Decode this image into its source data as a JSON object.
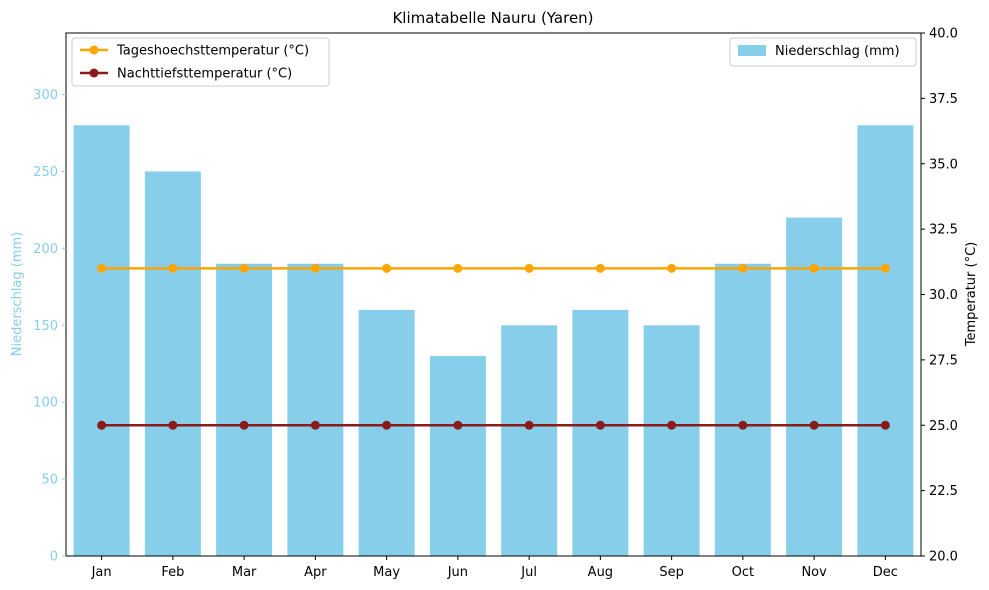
{
  "chart_data": {
    "type": "bar",
    "title": "Klimatabelle Nauru (Yaren)",
    "categories": [
      "Jan",
      "Feb",
      "Mar",
      "Apr",
      "May",
      "Jun",
      "Jul",
      "Aug",
      "Sep",
      "Oct",
      "Nov",
      "Dec"
    ],
    "precipitation": {
      "name": "Niederschlag (mm)",
      "values": [
        280,
        250,
        190,
        190,
        160,
        130,
        150,
        160,
        150,
        190,
        220,
        280
      ],
      "color": "#87CEEB",
      "ylabel": "Niederschlag (mm)",
      "ylim": [
        0,
        340
      ],
      "ticks": [
        0,
        50,
        100,
        150,
        200,
        250,
        300
      ],
      "tick_labels": [
        "0",
        "50",
        "100",
        "150",
        "200",
        "250",
        "300"
      ]
    },
    "temperature_axis": {
      "ylabel": "Temperatur (°C)",
      "ylim": [
        20.0,
        40.0
      ],
      "ticks": [
        20.0,
        22.5,
        25.0,
        27.5,
        30.0,
        32.5,
        35.0,
        37.5,
        40.0
      ],
      "tick_labels": [
        "20.0",
        "22.5",
        "25.0",
        "27.5",
        "30.0",
        "32.5",
        "35.0",
        "37.5",
        "40.0"
      ]
    },
    "series": [
      {
        "name": "Tageshoechsttemperatur (°C)",
        "values": [
          31,
          31,
          31,
          31,
          31,
          31,
          31,
          31,
          31,
          31,
          31,
          31
        ],
        "color": "#FFA500"
      },
      {
        "name": "Nachttiefsttemperatur (°C)",
        "values": [
          25,
          25,
          25,
          25,
          25,
          25,
          25,
          25,
          25,
          25,
          25,
          25
        ],
        "color": "#8B1A1A"
      }
    ],
    "legend": {
      "lines_position": "top-left",
      "bars_position": "top-right"
    },
    "grid": false
  }
}
